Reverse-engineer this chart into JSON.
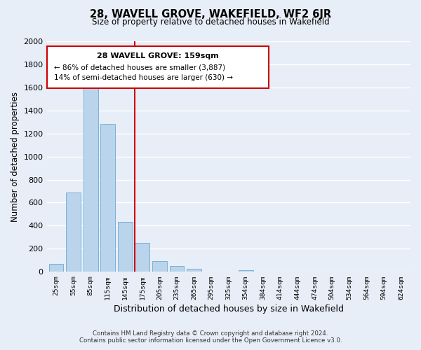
{
  "title": "28, WAVELL GROVE, WAKEFIELD, WF2 6JR",
  "subtitle": "Size of property relative to detached houses in Wakefield",
  "xlabel": "Distribution of detached houses by size in Wakefield",
  "ylabel": "Number of detached properties",
  "bar_labels": [
    "25sqm",
    "55sqm",
    "85sqm",
    "115sqm",
    "145sqm",
    "175sqm",
    "205sqm",
    "235sqm",
    "265sqm",
    "295sqm",
    "325sqm",
    "354sqm",
    "384sqm",
    "414sqm",
    "444sqm",
    "474sqm",
    "504sqm",
    "534sqm",
    "564sqm",
    "594sqm",
    "624sqm"
  ],
  "bar_values": [
    65,
    690,
    1635,
    1285,
    435,
    250,
    90,
    52,
    28,
    0,
    0,
    15,
    0,
    0,
    0,
    0,
    0,
    0,
    0,
    0,
    0
  ],
  "bar_color": "#bad4ec",
  "bar_edge_color": "#6aaad4",
  "vline_x": 4.57,
  "vline_color": "#cc0000",
  "ylim": [
    0,
    2000
  ],
  "yticks": [
    0,
    200,
    400,
    600,
    800,
    1000,
    1200,
    1400,
    1600,
    1800,
    2000
  ],
  "annotation_title": "28 WAVELL GROVE: 159sqm",
  "annotation_line1": "← 86% of detached houses are smaller (3,887)",
  "annotation_line2": "14% of semi-detached houses are larger (630) →",
  "annotation_box_color": "white",
  "annotation_box_edge": "#cc0000",
  "footer_line1": "Contains HM Land Registry data © Crown copyright and database right 2024.",
  "footer_line2": "Contains public sector information licensed under the Open Government Licence v3.0.",
  "background_color": "#e8eef7",
  "grid_color": "#c8d4e8"
}
